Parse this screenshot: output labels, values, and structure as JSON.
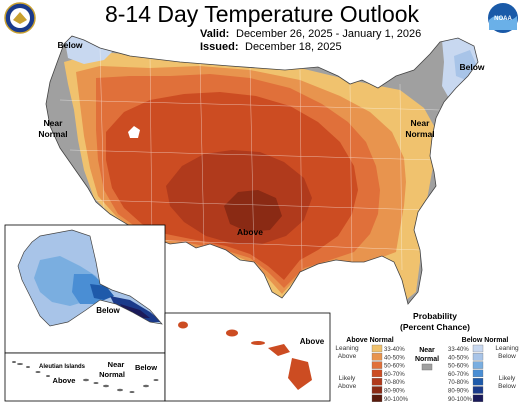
{
  "title": "8-14 Day Temperature Outlook",
  "valid_label": "Valid:",
  "valid_value": "December 26, 2025 - January 1, 2026",
  "issued_label": "Issued:",
  "issued_value": "December 18, 2025",
  "logos": {
    "left": "doc-seal-icon",
    "right": "noaa-logo-icon",
    "right_text": "NOAA"
  },
  "map_labels": {
    "below_nw": "Below",
    "below_ne": "Below",
    "near_normal_west_1": "Near",
    "near_normal_west_2": "Normal",
    "near_normal_east_1": "Near",
    "near_normal_east_2": "Normal",
    "above_center": "Above",
    "alaska_below": "Below",
    "hawaii_above": "Above"
  },
  "aleutian": {
    "title": "Aleutian Islands",
    "near_1": "Near",
    "near_2": "Normal",
    "below": "Below",
    "above": "Above"
  },
  "legend": {
    "title_1": "Probability",
    "title_2": "(Percent Chance)",
    "above_header": "Above Normal",
    "below_header": "Below Normal",
    "near_1": "Near",
    "near_2": "Normal",
    "leaning_above_1": "Leaning",
    "leaning_above_2": "Above",
    "likely_above_1": "Likely",
    "likely_above_2": "Above",
    "leaning_below_1": "Leaning",
    "leaning_below_2": "Below",
    "likely_below_1": "Likely",
    "likely_below_2": "Below",
    "ranges": [
      "33-40%",
      "40-50%",
      "50-60%",
      "60-70%",
      "70-80%",
      "80-90%",
      "90-100%"
    ],
    "above_colors": [
      "#f0c26e",
      "#e8944e",
      "#e0703a",
      "#cc4c22",
      "#b03a1c",
      "#8a2a14",
      "#5a1a0c"
    ],
    "below_colors": [
      "#c8d8f0",
      "#a8c4e8",
      "#7aaee0",
      "#4a8ed4",
      "#1e5aaa",
      "#1a3a8a",
      "#1a1a5a"
    ],
    "near_color": "#a0a0a0"
  }
}
